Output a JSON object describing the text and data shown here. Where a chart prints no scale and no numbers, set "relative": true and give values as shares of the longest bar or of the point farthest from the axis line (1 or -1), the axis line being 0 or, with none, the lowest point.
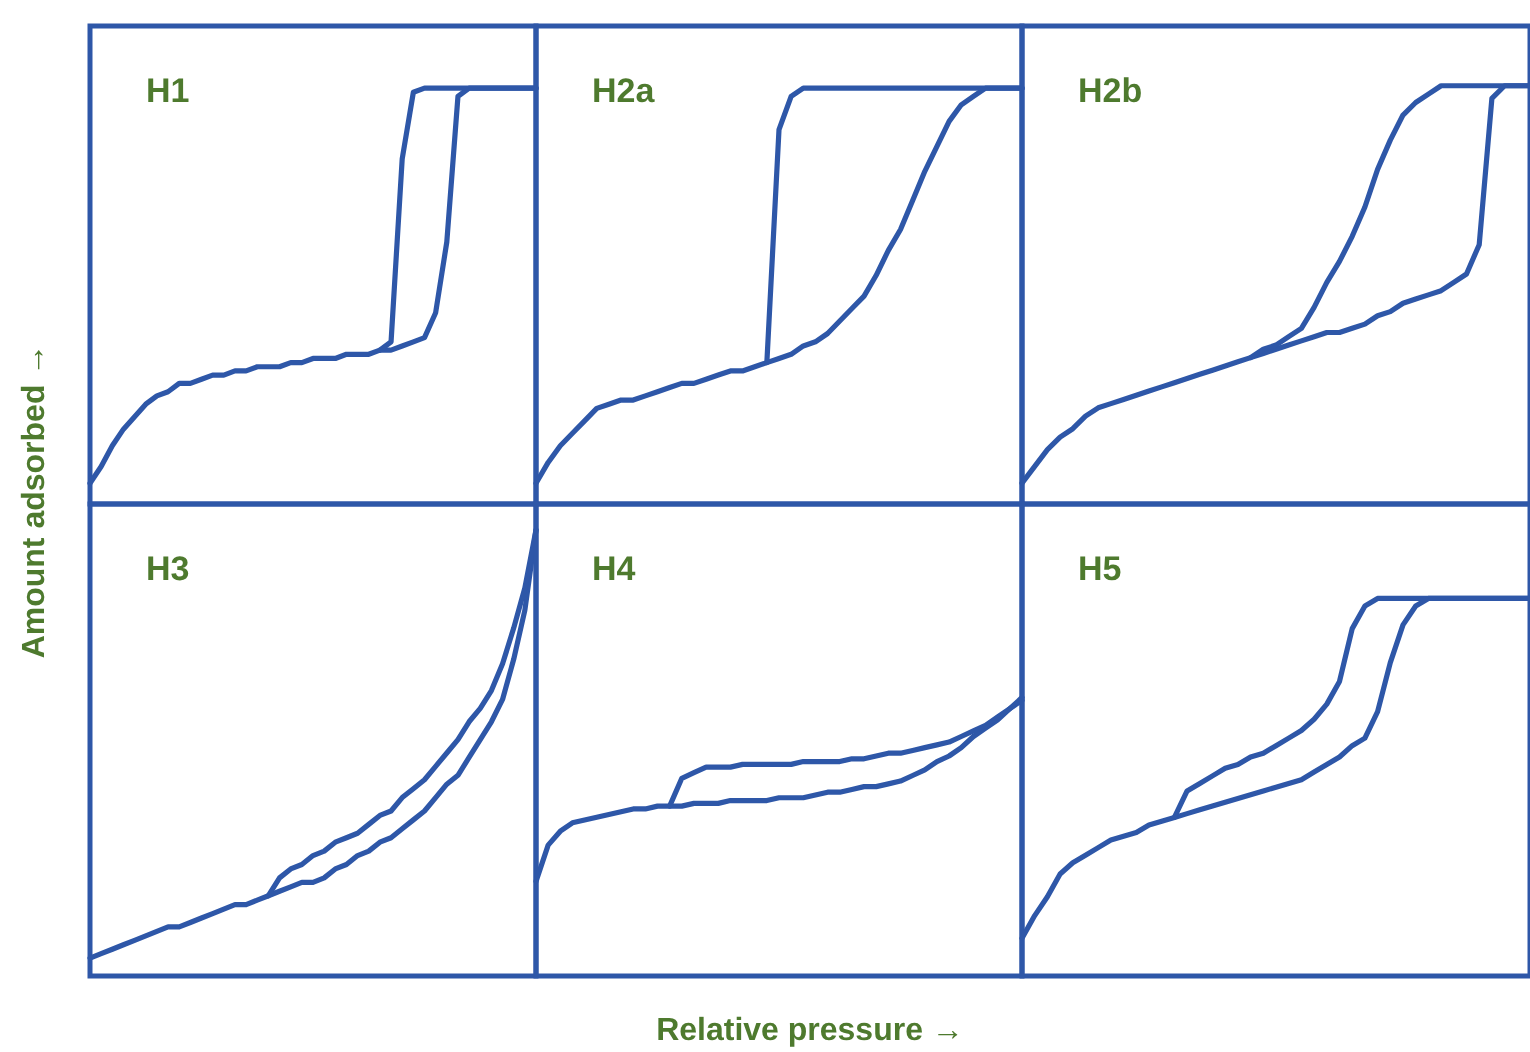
{
  "chart_data": [
    {
      "type": "line",
      "relative": true,
      "title": "H1",
      "ylabel": "Amount adsorbed →",
      "categories": [
        null,
        null,
        null,
        null,
        null,
        null,
        null,
        null,
        null,
        null,
        null,
        null,
        null,
        null,
        null,
        null,
        null,
        null,
        null,
        null,
        null,
        null,
        null,
        null,
        null,
        null,
        null,
        null,
        null,
        null,
        null,
        null,
        null,
        null,
        null,
        null,
        null,
        null,
        null,
        null,
        null
      ],
      "series": [
        {
          "color": "#2e57a8",
          "values": [
            0.05,
            0.09,
            0.14,
            0.18,
            0.21,
            0.24,
            0.26,
            0.27,
            0.29,
            0.29,
            0.3,
            0.31,
            0.31,
            0.32,
            0.32,
            0.33,
            0.33,
            0.33,
            0.34,
            0.34,
            0.35,
            0.35,
            0.35,
            0.36,
            0.36,
            0.36,
            0.37,
            0.37,
            0.38,
            0.39,
            0.4,
            0.46,
            0.63,
            0.98,
            1,
            1,
            1,
            1,
            1,
            1,
            1
          ]
        },
        {
          "color": "#2e57a8",
          "values": [
            null,
            null,
            null,
            null,
            null,
            null,
            null,
            null,
            null,
            null,
            null,
            null,
            null,
            null,
            null,
            null,
            null,
            null,
            null,
            null,
            null,
            null,
            null,
            null,
            null,
            null,
            0.37,
            0.39,
            0.83,
            0.99,
            1,
            1,
            1,
            1,
            1,
            1,
            1,
            1,
            1,
            1,
            1
          ]
        }
      ]
    },
    {
      "type": "line",
      "relative": true,
      "title": "H2a",
      "categories": [
        null,
        null,
        null,
        null,
        null,
        null,
        null,
        null,
        null,
        null,
        null,
        null,
        null,
        null,
        null,
        null,
        null,
        null,
        null,
        null,
        null,
        null,
        null,
        null,
        null,
        null,
        null,
        null,
        null,
        null,
        null,
        null,
        null,
        null,
        null,
        null,
        null,
        null,
        null,
        null,
        null
      ],
      "series": [
        {
          "color": "#2e57a8",
          "values": [
            0.05,
            0.1,
            0.14,
            0.17,
            0.2,
            0.23,
            0.24,
            0.25,
            0.25,
            0.26,
            0.27,
            0.28,
            0.29,
            0.29,
            0.3,
            0.31,
            0.32,
            0.32,
            0.33,
            0.34,
            0.35,
            0.36,
            0.38,
            0.39,
            0.41,
            0.44,
            0.47,
            0.5,
            0.55,
            0.61,
            0.66,
            0.73,
            0.8,
            0.86,
            0.92,
            0.96,
            0.98,
            1,
            1,
            1,
            1
          ]
        },
        {
          "color": "#2e57a8",
          "values": [
            null,
            null,
            null,
            null,
            null,
            null,
            null,
            null,
            null,
            null,
            null,
            null,
            null,
            null,
            null,
            null,
            null,
            null,
            null,
            0.34,
            0.9,
            0.98,
            1,
            1,
            1,
            1,
            1,
            1,
            1,
            1,
            1,
            1,
            1,
            1,
            1,
            1,
            1,
            1,
            1,
            1,
            1
          ]
        }
      ]
    },
    {
      "type": "line",
      "relative": true,
      "title": "H2b",
      "categories": [
        null,
        null,
        null,
        null,
        null,
        null,
        null,
        null,
        null,
        null,
        null,
        null,
        null,
        null,
        null,
        null,
        null,
        null,
        null,
        null,
        null,
        null,
        null,
        null,
        null,
        null,
        null,
        null,
        null,
        null,
        null,
        null,
        null,
        null,
        null,
        null,
        null,
        null,
        null,
        null,
        null
      ],
      "series": [
        {
          "color": "#2e57a8",
          "values": [
            0.05,
            0.09,
            0.13,
            0.16,
            0.18,
            0.21,
            0.23,
            0.24,
            0.25,
            0.26,
            0.27,
            0.28,
            0.29,
            0.3,
            0.31,
            0.32,
            0.33,
            0.34,
            0.35,
            0.36,
            0.37,
            0.38,
            0.39,
            0.4,
            0.41,
            0.41,
            0.42,
            0.43,
            0.45,
            0.46,
            0.48,
            0.49,
            0.5,
            0.51,
            0.53,
            0.55,
            0.62,
            0.97,
            1,
            1,
            1
          ]
        },
        {
          "color": "#2e57a8",
          "values": [
            null,
            null,
            null,
            null,
            null,
            null,
            null,
            null,
            null,
            null,
            null,
            null,
            null,
            null,
            null,
            null,
            null,
            null,
            0.35,
            0.37,
            0.38,
            0.4,
            0.42,
            0.47,
            0.53,
            0.58,
            0.64,
            0.71,
            0.8,
            0.87,
            0.93,
            0.96,
            0.98,
            1,
            1,
            1,
            1,
            1,
            1,
            1,
            1
          ]
        }
      ]
    },
    {
      "type": "line",
      "relative": true,
      "title": "H3",
      "categories": [
        null,
        null,
        null,
        null,
        null,
        null,
        null,
        null,
        null,
        null,
        null,
        null,
        null,
        null,
        null,
        null,
        null,
        null,
        null,
        null,
        null,
        null,
        null,
        null,
        null,
        null,
        null,
        null,
        null,
        null,
        null,
        null,
        null,
        null,
        null,
        null,
        null,
        null,
        null,
        null,
        null
      ],
      "series": [
        {
          "color": "#2e57a8",
          "values": [
            0.04,
            0.05,
            0.06,
            0.07,
            0.08,
            0.09,
            0.1,
            0.11,
            0.11,
            0.12,
            0.13,
            0.14,
            0.15,
            0.16,
            0.16,
            0.17,
            0.18,
            0.19,
            0.2,
            0.21,
            0.21,
            0.22,
            0.24,
            0.25,
            0.27,
            0.28,
            0.3,
            0.31,
            0.33,
            0.35,
            0.37,
            0.4,
            0.43,
            0.45,
            0.49,
            0.53,
            0.57,
            0.62,
            0.71,
            0.82,
            1
          ]
        },
        {
          "color": "#2e57a8",
          "values": [
            null,
            null,
            null,
            null,
            null,
            null,
            null,
            null,
            null,
            null,
            null,
            null,
            null,
            null,
            null,
            null,
            0.18,
            0.22,
            0.24,
            0.25,
            0.27,
            0.28,
            0.3,
            0.31,
            0.32,
            0.34,
            0.36,
            0.37,
            0.4,
            0.42,
            0.44,
            0.47,
            0.5,
            0.53,
            0.57,
            0.6,
            0.64,
            0.7,
            0.78,
            0.87,
            1
          ]
        }
      ]
    },
    {
      "type": "line",
      "relative": true,
      "title": "H4",
      "xlabel": "Relative pressure →",
      "categories": [
        null,
        null,
        null,
        null,
        null,
        null,
        null,
        null,
        null,
        null,
        null,
        null,
        null,
        null,
        null,
        null,
        null,
        null,
        null,
        null,
        null,
        null,
        null,
        null,
        null,
        null,
        null,
        null,
        null,
        null,
        null,
        null,
        null,
        null,
        null,
        null,
        null,
        null,
        null,
        null,
        null
      ],
      "series": [
        {
          "color": "#2e57a8",
          "values": [
            0.34,
            0.47,
            0.52,
            0.55,
            0.56,
            0.57,
            0.58,
            0.59,
            0.6,
            0.6,
            0.61,
            0.61,
            0.61,
            0.62,
            0.62,
            0.62,
            0.63,
            0.63,
            0.63,
            0.63,
            0.64,
            0.64,
            0.64,
            0.65,
            0.66,
            0.66,
            0.67,
            0.68,
            0.68,
            0.69,
            0.7,
            0.72,
            0.74,
            0.77,
            0.79,
            0.82,
            0.86,
            0.89,
            0.92,
            0.96,
            0.99
          ]
        },
        {
          "color": "#2e57a8",
          "values": [
            null,
            null,
            null,
            null,
            null,
            null,
            null,
            null,
            null,
            null,
            null,
            0.61,
            0.71,
            0.73,
            0.75,
            0.75,
            0.75,
            0.76,
            0.76,
            0.76,
            0.76,
            0.76,
            0.77,
            0.77,
            0.77,
            0.77,
            0.78,
            0.78,
            0.79,
            0.8,
            0.8,
            0.81,
            0.82,
            0.83,
            0.84,
            0.86,
            0.88,
            0.9,
            0.93,
            0.96,
            1
          ]
        }
      ]
    },
    {
      "type": "line",
      "relative": true,
      "title": "H5",
      "categories": [
        null,
        null,
        null,
        null,
        null,
        null,
        null,
        null,
        null,
        null,
        null,
        null,
        null,
        null,
        null,
        null,
        null,
        null,
        null,
        null,
        null,
        null,
        null,
        null,
        null,
        null,
        null,
        null,
        null,
        null,
        null,
        null,
        null,
        null,
        null,
        null,
        null,
        null,
        null,
        null,
        null
      ],
      "series": [
        {
          "color": "#2e57a8",
          "values": [
            0.1,
            0.16,
            0.21,
            0.27,
            0.3,
            0.32,
            0.34,
            0.36,
            0.37,
            0.38,
            0.4,
            0.41,
            0.42,
            0.43,
            0.44,
            0.45,
            0.46,
            0.47,
            0.48,
            0.49,
            0.5,
            0.51,
            0.52,
            0.54,
            0.56,
            0.58,
            0.61,
            0.63,
            0.7,
            0.83,
            0.93,
            0.98,
            1,
            1,
            1,
            1,
            1,
            1,
            1,
            1,
            1
          ]
        },
        {
          "color": "#2e57a8",
          "values": [
            null,
            null,
            null,
            null,
            null,
            null,
            null,
            null,
            null,
            null,
            null,
            null,
            0.42,
            0.49,
            0.51,
            0.53,
            0.55,
            0.56,
            0.58,
            0.59,
            0.61,
            0.63,
            0.65,
            0.68,
            0.72,
            0.78,
            0.92,
            0.98,
            1,
            1,
            1,
            1,
            1,
            1,
            1,
            1,
            1,
            1,
            1,
            1,
            1
          ]
        }
      ]
    }
  ]
}
